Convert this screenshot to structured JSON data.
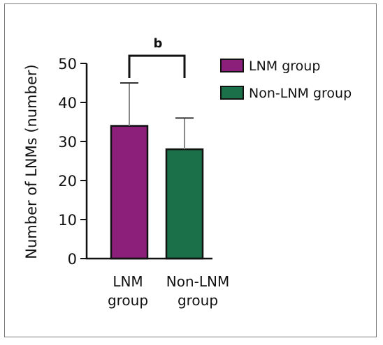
{
  "chart_data": {
    "type": "bar",
    "categories": [
      "LNM group",
      "Non-LNM group"
    ],
    "category_labels": [
      [
        "LNM",
        "group"
      ],
      [
        "Non-LNM",
        "group"
      ]
    ],
    "series": [
      {
        "name": "LNM group",
        "value": 34,
        "error": 11,
        "color": "#8b1f7a"
      },
      {
        "name": "Non-LNM group",
        "value": 28,
        "error": 8,
        "color": "#1c7049"
      }
    ],
    "values": [
      34,
      28
    ],
    "errors": [
      11,
      8
    ],
    "title": "",
    "xlabel": "",
    "ylabel": "Number of LNMs (number)",
    "ylim": [
      0,
      50
    ],
    "yticks": [
      0,
      10,
      20,
      30,
      40,
      50
    ],
    "grid": false,
    "legend_position": "right",
    "annotation": "b"
  },
  "colors": {
    "lnm": "#8b1f7a",
    "non_lnm": "#1c7049",
    "error_bar": "#888888",
    "axis": "#111111"
  }
}
